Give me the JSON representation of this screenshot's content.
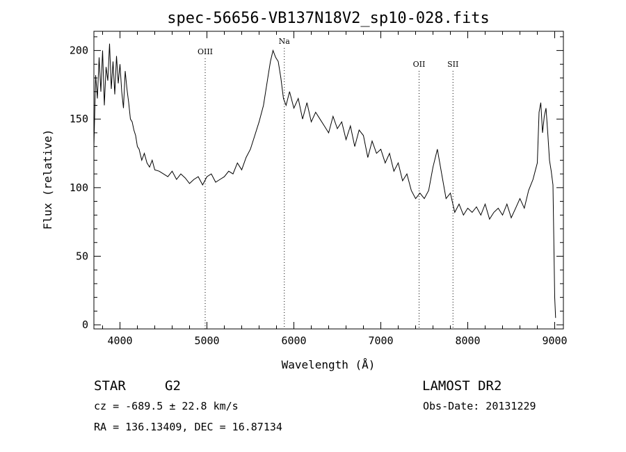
{
  "chart_data": {
    "type": "line",
    "title": "spec-56656-VB137N18V2_sp10-028.fits",
    "xlabel": "Wavelength (Å)",
    "ylabel": "Flux (relative)",
    "xlim": [
      3700,
      9100
    ],
    "ylim": [
      -3,
      214
    ],
    "xticks": [
      4000,
      5000,
      6000,
      7000,
      8000,
      9000
    ],
    "yticks": [
      0,
      50,
      100,
      150,
      200
    ],
    "grid": false,
    "series": [
      {
        "x": [
          3700,
          3720,
          3740,
          3760,
          3780,
          3800,
          3820,
          3840,
          3860,
          3880,
          3900,
          3920,
          3940,
          3960,
          3980,
          4000,
          4020,
          4040,
          4060,
          4080,
          4100,
          4120,
          4140,
          4160,
          4180,
          4200,
          4220,
          4250,
          4280,
          4310,
          4340,
          4370,
          4400,
          4450,
          4500,
          4550,
          4600,
          4650,
          4700,
          4750,
          4800,
          4850,
          4900,
          4950,
          5000,
          5050,
          5100,
          5150,
          5200,
          5250,
          5300,
          5350,
          5400,
          5450,
          5500,
          5550,
          5600,
          5650,
          5700,
          5730,
          5760,
          5790,
          5820,
          5850,
          5880,
          5910,
          5950,
          6000,
          6050,
          6100,
          6150,
          6200,
          6250,
          6300,
          6350,
          6400,
          6450,
          6500,
          6550,
          6600,
          6650,
          6700,
          6750,
          6800,
          6850,
          6900,
          6950,
          7000,
          7050,
          7100,
          7150,
          7200,
          7250,
          7300,
          7350,
          7400,
          7450,
          7500,
          7550,
          7600,
          7650,
          7700,
          7750,
          7800,
          7850,
          7900,
          7950,
          8000,
          8050,
          8100,
          8150,
          8200,
          8250,
          8300,
          8350,
          8400,
          8450,
          8500,
          8550,
          8600,
          8650,
          8700,
          8750,
          8800,
          8820,
          8840,
          8860,
          8880,
          8900,
          8920,
          8940,
          8960,
          8980,
          9000,
          9010
        ],
        "y": [
          130,
          182,
          165,
          195,
          170,
          200,
          160,
          188,
          178,
          205,
          172,
          192,
          168,
          196,
          176,
          190,
          170,
          158,
          185,
          172,
          162,
          150,
          148,
          142,
          138,
          130,
          128,
          120,
          125,
          118,
          115,
          120,
          113,
          112,
          110,
          108,
          112,
          106,
          110,
          107,
          103,
          106,
          108,
          102,
          108,
          110,
          104,
          106,
          108,
          112,
          110,
          118,
          113,
          122,
          128,
          138,
          148,
          160,
          180,
          192,
          200,
          195,
          192,
          180,
          165,
          160,
          170,
          158,
          165,
          150,
          162,
          148,
          155,
          150,
          145,
          140,
          152,
          143,
          148,
          135,
          145,
          130,
          142,
          138,
          122,
          134,
          125,
          128,
          118,
          125,
          112,
          118,
          105,
          110,
          98,
          92,
          96,
          92,
          98,
          115,
          128,
          110,
          92,
          96,
          82,
          88,
          80,
          85,
          82,
          86,
          80,
          88,
          77,
          82,
          85,
          80,
          88,
          78,
          85,
          92,
          85,
          98,
          106,
          118,
          155,
          162,
          140,
          152,
          158,
          140,
          120,
          112,
          102,
          20,
          5
        ]
      }
    ],
    "line_markers": [
      {
        "label": "OIII",
        "x": 4980
      },
      {
        "label": "Na",
        "x": 5890
      },
      {
        "label": "OII",
        "x": 7440
      },
      {
        "label": "SII",
        "x": 7830
      }
    ]
  },
  "info": {
    "object_class": "STAR",
    "subclass": "G2",
    "survey": "LAMOST DR2",
    "velocity": "cz = -689.5 ± 22.8 km/s",
    "obs_date": "Obs-Date: 20131229",
    "coordinates": "RA = 136.13409, DEC =  16.87134"
  }
}
